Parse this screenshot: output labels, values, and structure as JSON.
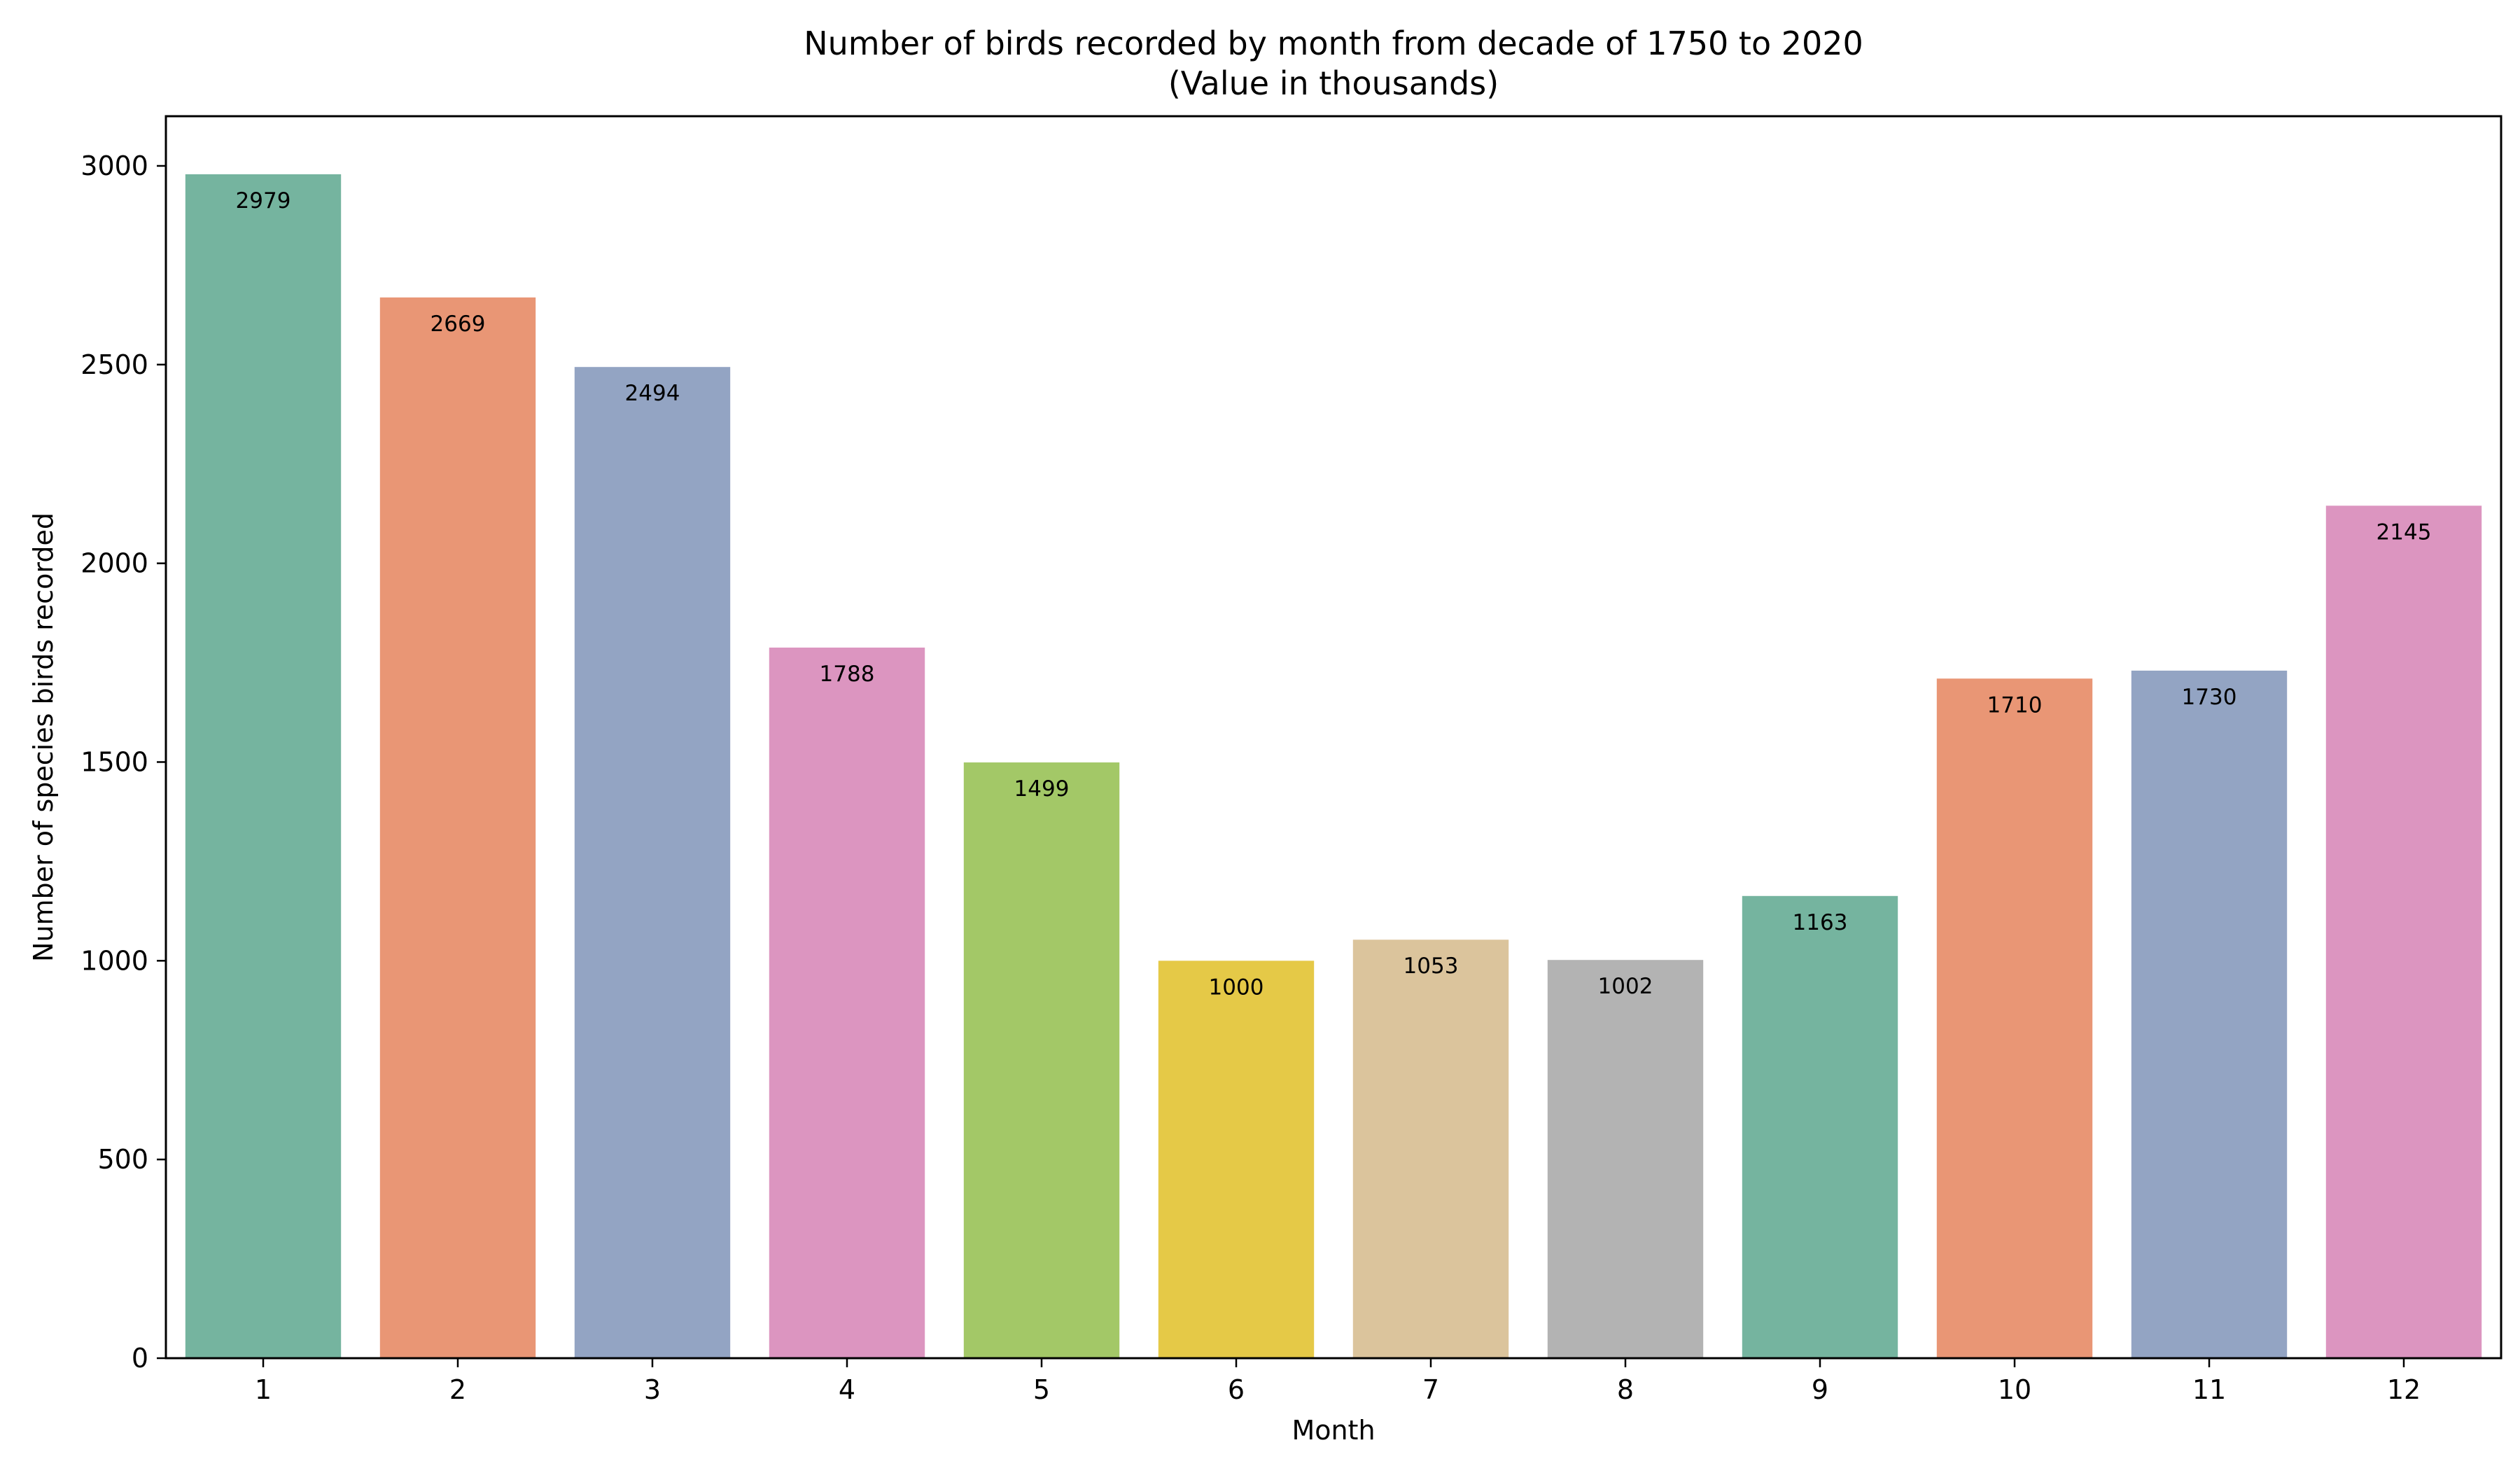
{
  "chart_data": {
    "type": "bar",
    "title": "Number of birds recorded by month from decade of 1750 to 2020",
    "subtitle": "(Value in thousands)",
    "xlabel": "Month",
    "ylabel": "Number of species birds recorded",
    "categories": [
      "1",
      "2",
      "3",
      "4",
      "5",
      "6",
      "7",
      "8",
      "9",
      "10",
      "11",
      "12"
    ],
    "values": [
      2979,
      2669,
      2494,
      1788,
      1499,
      1000,
      1053,
      1002,
      1163,
      1710,
      1730,
      2145
    ],
    "colors": [
      "#75b49f",
      "#e99675",
      "#93a4c3",
      "#dc95c0",
      "#a3c867",
      "#e5c947",
      "#dbc49c",
      "#b3b3b3",
      "#75b49f",
      "#e99675",
      "#93a4c3",
      "#dc95c0"
    ],
    "ylim": [
      0,
      3125
    ],
    "yticks": [
      0,
      500,
      1000,
      1500,
      2000,
      2500,
      3000
    ],
    "grid": false,
    "data_labels": true
  }
}
